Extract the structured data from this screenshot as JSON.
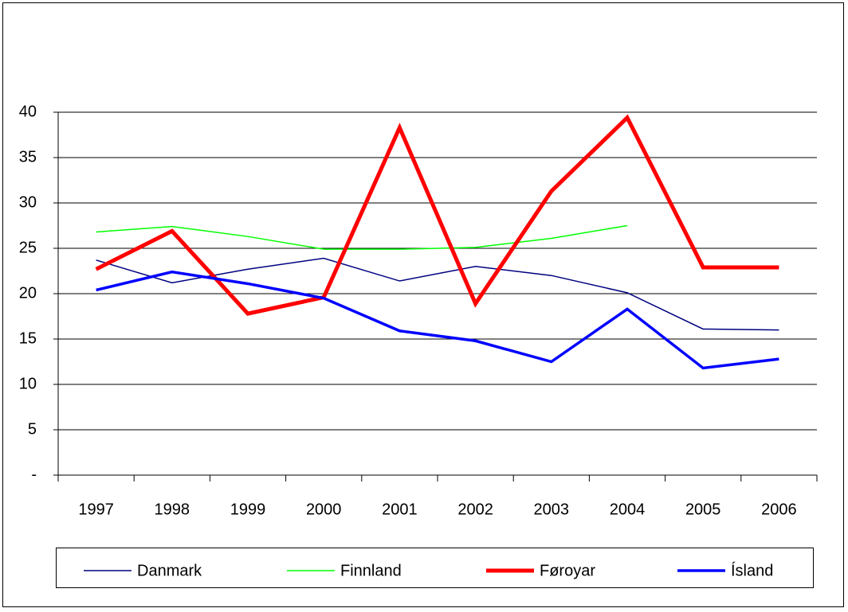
{
  "chart_data": {
    "type": "line",
    "categories": [
      "1997",
      "1998",
      "1999",
      "2000",
      "2001",
      "2002",
      "2003",
      "2004",
      "2005",
      "2006"
    ],
    "series": [
      {
        "name": "Danmark",
        "color": "#000080",
        "values": [
          23.7,
          21.2,
          22.7,
          23.9,
          21.4,
          23.0,
          22.0,
          20.1,
          16.1,
          16.0
        ]
      },
      {
        "name": "Finnland",
        "color": "#00ff00",
        "values": [
          26.8,
          27.4,
          26.3,
          24.9,
          24.9,
          25.1,
          26.1,
          27.5,
          null,
          null
        ]
      },
      {
        "name": "Føroyar",
        "color": "#ff0000",
        "values": [
          22.7,
          26.9,
          17.8,
          19.6,
          38.3,
          18.9,
          31.3,
          39.4,
          22.9,
          22.9
        ]
      },
      {
        "name": "Ísland",
        "color": "#0000ff",
        "values": [
          20.4,
          22.4,
          21.1,
          19.5,
          15.9,
          14.8,
          12.5,
          18.3,
          11.8,
          12.8
        ]
      }
    ],
    "ylim": [
      0,
      40
    ],
    "yticks": [
      {
        "value": 0,
        "label": "-"
      },
      5,
      10,
      15,
      20,
      25,
      30,
      35,
      40
    ],
    "grid": true,
    "legend": "bottom"
  }
}
